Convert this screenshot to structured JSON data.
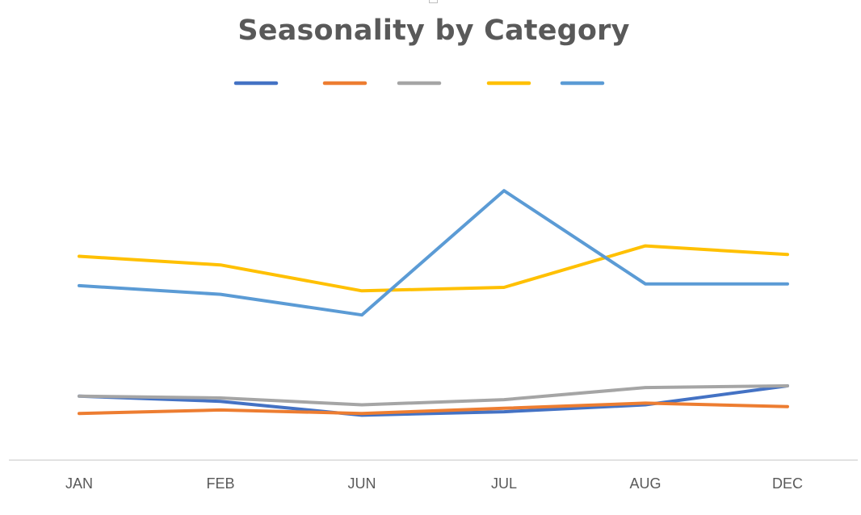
{
  "chart_data": {
    "type": "line",
    "title": "Seasonality by Category",
    "categories": [
      "JAN",
      "FEB",
      "JUN",
      "JUL",
      "AUG",
      "DEC"
    ],
    "series": [
      {
        "color": "#4472C4",
        "values": [
          18.5,
          17.0,
          13.0,
          14.0,
          16.0,
          21.5
        ]
      },
      {
        "color": "#ED7D31",
        "values": [
          13.5,
          14.5,
          13.5,
          15.0,
          16.5,
          15.5
        ]
      },
      {
        "color": "#A5A5A5",
        "values": [
          18.5,
          18.0,
          16.0,
          17.5,
          21.0,
          21.5
        ]
      },
      {
        "color": "#FFC000",
        "values": [
          59.0,
          56.5,
          49.0,
          50.0,
          62.0,
          59.5
        ]
      },
      {
        "color": "#5B9BD5",
        "values": [
          50.5,
          48.0,
          42.0,
          78.0,
          51.0,
          51.0
        ]
      }
    ],
    "ylim": [
      0,
      100
    ],
    "grid": false,
    "legend": "top"
  }
}
